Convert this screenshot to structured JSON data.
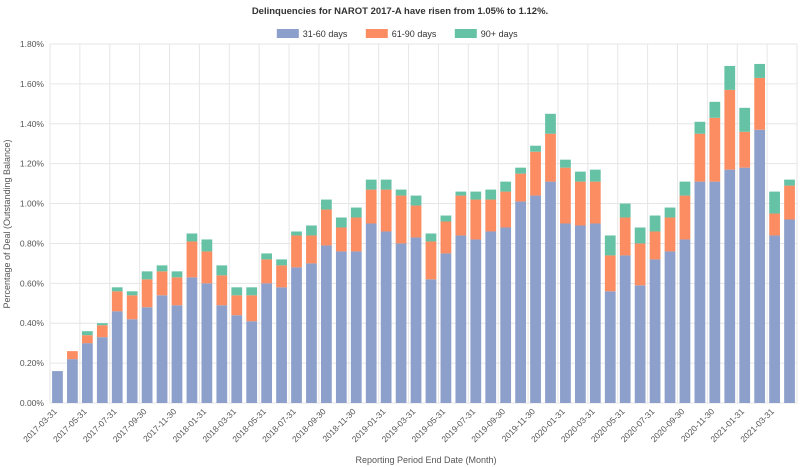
{
  "chart_data": {
    "type": "bar",
    "stacked": true,
    "title": "Delinquencies for NAROT 2017-A have risen from 1.05% to 1.12%.",
    "xlabel": "Reporting Period End Date (Month)",
    "ylabel": "Percentage of Deal (Outstanding Balance)",
    "ylim": [
      0,
      1.8
    ],
    "yticks": [
      "0.00%",
      "0.20%",
      "0.40%",
      "0.60%",
      "0.80%",
      "1.00%",
      "1.20%",
      "1.40%",
      "1.60%",
      "1.80%"
    ],
    "legend_position": "top-center",
    "grid": true,
    "categories": [
      "2017-03-31",
      "2017-04-30",
      "2017-05-31",
      "2017-06-30",
      "2017-07-31",
      "2017-08-31",
      "2017-09-30",
      "2017-10-31",
      "2017-11-30",
      "2017-12-31",
      "2018-01-31",
      "2018-02-28",
      "2018-03-31",
      "2018-04-30",
      "2018-05-31",
      "2018-06-30",
      "2018-07-31",
      "2018-08-31",
      "2018-09-30",
      "2018-10-31",
      "2018-11-30",
      "2018-12-31",
      "2019-01-31",
      "2019-02-28",
      "2019-03-31",
      "2019-04-30",
      "2019-05-31",
      "2019-06-30",
      "2019-07-31",
      "2019-08-31",
      "2019-09-30",
      "2019-10-31",
      "2019-11-30",
      "2019-12-31",
      "2020-01-31",
      "2020-02-29",
      "2020-03-31",
      "2020-04-30",
      "2020-05-31",
      "2020-06-30",
      "2020-07-31",
      "2020-08-31",
      "2020-09-30",
      "2020-10-31",
      "2020-11-30",
      "2020-12-31",
      "2021-01-31",
      "2021-02-28",
      "2021-03-31",
      "2021-04-30"
    ],
    "tick_labels": [
      "2017-03-31",
      "2017-05-31",
      "2017-07-31",
      "2017-09-30",
      "2017-11-30",
      "2018-01-31",
      "2018-03-31",
      "2018-05-31",
      "2018-07-31",
      "2018-09-30",
      "2018-11-30",
      "2019-01-31",
      "2019-03-31",
      "2019-05-31",
      "2019-07-31",
      "2019-09-30",
      "2019-11-30",
      "2020-01-31",
      "2020-03-31",
      "2020-05-31",
      "2020-07-31",
      "2020-09-30",
      "2020-11-30",
      "2021-01-31",
      "2021-03-31"
    ],
    "series": [
      {
        "name": "31-60 days",
        "color": "#8da0cb",
        "values": [
          0.16,
          0.22,
          0.3,
          0.33,
          0.46,
          0.42,
          0.48,
          0.54,
          0.49,
          0.63,
          0.6,
          0.49,
          0.44,
          0.41,
          0.6,
          0.58,
          0.68,
          0.7,
          0.79,
          0.76,
          0.76,
          0.9,
          0.86,
          0.8,
          0.83,
          0.62,
          0.75,
          0.84,
          0.82,
          0.86,
          0.88,
          1.01,
          1.04,
          1.11,
          0.9,
          0.89,
          0.9,
          0.56,
          0.74,
          0.59,
          0.72,
          0.76,
          0.82,
          1.11,
          1.11,
          1.17,
          1.18,
          1.37,
          0.84,
          0.92
        ]
      },
      {
        "name": "61-90 days",
        "color": "#fc8d62",
        "values": [
          0.0,
          0.04,
          0.04,
          0.06,
          0.1,
          0.12,
          0.14,
          0.12,
          0.14,
          0.18,
          0.16,
          0.15,
          0.1,
          0.13,
          0.12,
          0.11,
          0.16,
          0.14,
          0.18,
          0.12,
          0.17,
          0.17,
          0.21,
          0.24,
          0.16,
          0.19,
          0.16,
          0.2,
          0.2,
          0.16,
          0.18,
          0.14,
          0.22,
          0.24,
          0.28,
          0.22,
          0.21,
          0.18,
          0.19,
          0.21,
          0.14,
          0.17,
          0.22,
          0.24,
          0.32,
          0.4,
          0.18,
          0.26,
          0.11,
          0.17
        ]
      },
      {
        "name": "90+ days",
        "color": "#66c2a5",
        "values": [
          0.0,
          0.0,
          0.02,
          0.01,
          0.02,
          0.02,
          0.04,
          0.03,
          0.03,
          0.04,
          0.06,
          0.05,
          0.04,
          0.04,
          0.03,
          0.03,
          0.02,
          0.05,
          0.05,
          0.05,
          0.05,
          0.05,
          0.05,
          0.03,
          0.05,
          0.04,
          0.03,
          0.02,
          0.04,
          0.05,
          0.05,
          0.03,
          0.03,
          0.1,
          0.04,
          0.05,
          0.06,
          0.1,
          0.07,
          0.08,
          0.08,
          0.05,
          0.07,
          0.06,
          0.08,
          0.12,
          0.12,
          0.07,
          0.11,
          0.03
        ]
      }
    ]
  }
}
